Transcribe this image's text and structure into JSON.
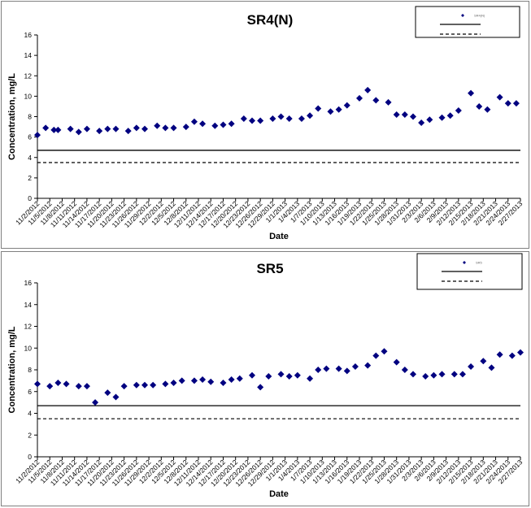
{
  "chart_data": [
    {
      "type": "scatter",
      "title": "SR4(N)",
      "xlabel": "Date",
      "ylabel": "Concentration, mg/L",
      "ylim": [
        0,
        16
      ],
      "yticks": [
        "0",
        "2",
        "4",
        "6",
        "8",
        "10",
        "12",
        "14",
        "16"
      ],
      "xticks": [
        "11/2/2012",
        "11/5/2012",
        "11/8/2012",
        "11/11/2012",
        "11/14/2012",
        "11/17/2012",
        "11/20/2012",
        "11/23/2012",
        "11/26/2012",
        "11/29/2012",
        "12/2/2012",
        "12/5/2012",
        "12/8/2012",
        "12/11/2012",
        "12/14/2012",
        "12/17/2012",
        "12/20/2012",
        "12/23/2012",
        "12/26/2012",
        "12/29/2012",
        "1/1/2013",
        "1/4/2013",
        "1/7/2013",
        "1/10/2013",
        "1/13/2013",
        "1/16/2013",
        "1/19/2013",
        "1/22/2013",
        "1/25/2013",
        "1/28/2013",
        "1/31/2013",
        "2/3/2013",
        "2/6/2013",
        "2/9/2013",
        "2/12/2013",
        "2/15/2013",
        "2/18/2013",
        "2/21/2013",
        "2/24/2013",
        "2/27/2013"
      ],
      "x_range": [
        "2012-11-02",
        "2013-02-27"
      ],
      "grid": false,
      "legend_position": "top-right",
      "legend": [
        "SR4(N)",
        "",
        ""
      ],
      "marker_color": "#000080",
      "line_color": "#000000",
      "series": [
        {
          "x": [
            "2012-11-02",
            "2012-11-04",
            "2012-11-06",
            "2012-11-07",
            "2012-11-10",
            "2012-11-12",
            "2012-11-14",
            "2012-11-17",
            "2012-11-19",
            "2012-11-21",
            "2012-11-24",
            "2012-11-26",
            "2012-11-28",
            "2012-12-01",
            "2012-12-03",
            "2012-12-05",
            "2012-12-08",
            "2012-12-10",
            "2012-12-12",
            "2012-12-15",
            "2012-12-17",
            "2012-12-19",
            "2012-12-22",
            "2012-12-24",
            "2012-12-26",
            "2012-12-29",
            "2012-12-31",
            "2013-01-02",
            "2013-01-05",
            "2013-01-07",
            "2013-01-09",
            "2013-01-12",
            "2013-01-14",
            "2013-01-16",
            "2013-01-19",
            "2013-01-21",
            "2013-01-23",
            "2013-01-26",
            "2013-01-28",
            "2013-01-30",
            "2013-02-01",
            "2013-02-03",
            "2013-02-05",
            "2013-02-08",
            "2013-02-10",
            "2013-02-12",
            "2013-02-15",
            "2013-02-17",
            "2013-02-19",
            "2013-02-22",
            "2013-02-24",
            "2013-02-26"
          ],
          "y": [
            6.2,
            6.9,
            6.7,
            6.7,
            6.8,
            6.5,
            6.8,
            6.6,
            6.8,
            6.8,
            6.6,
            6.9,
            6.8,
            7.1,
            6.9,
            6.9,
            7.0,
            7.5,
            7.3,
            7.1,
            7.2,
            7.3,
            7.8,
            7.6,
            7.6,
            7.8,
            8.0,
            7.8,
            7.8,
            8.1,
            8.8,
            8.5,
            8.7,
            9.1,
            9.8,
            10.6,
            9.6,
            9.4,
            8.2,
            8.2,
            8.0,
            7.4,
            7.7,
            7.9,
            8.1,
            8.6,
            10.3,
            9.0,
            8.7,
            9.9,
            9.3,
            9.3
          ]
        },
        {
          "y_constant": 4.7
        },
        {
          "y_constant": 3.5
        }
      ]
    },
    {
      "type": "scatter",
      "title": "SR5",
      "xlabel": "Date",
      "ylabel": "Concentration, mg/L",
      "ylim": [
        0,
        16
      ],
      "yticks": [
        "0",
        "2",
        "4",
        "6",
        "8",
        "10",
        "12",
        "14",
        "16"
      ],
      "xticks": [
        "11/2/2012",
        "11/5/2012",
        "11/8/2012",
        "11/11/2012",
        "11/14/2012",
        "11/17/2012",
        "11/20/2012",
        "11/23/2012",
        "11/26/2012",
        "11/29/2012",
        "12/2/2012",
        "12/5/2012",
        "12/8/2012",
        "12/11/2012",
        "12/14/2012",
        "12/17/2012",
        "12/20/2012",
        "12/23/2012",
        "12/26/2012",
        "12/29/2012",
        "1/1/2013",
        "1/4/2013",
        "1/7/2013",
        "1/10/2013",
        "1/13/2013",
        "1/16/2013",
        "1/19/2013",
        "1/22/2013",
        "1/25/2013",
        "1/28/2013",
        "1/31/2013",
        "2/3/2013",
        "2/6/2013",
        "2/9/2013",
        "2/12/2013",
        "2/15/2013",
        "2/18/2013",
        "2/21/2013",
        "2/24/2013",
        "2/27/2013"
      ],
      "x_range": [
        "2012-11-02",
        "2013-02-27"
      ],
      "grid": false,
      "legend_position": "top-right",
      "legend": [
        "SR5",
        "",
        ""
      ],
      "marker_color": "#000080",
      "line_color": "#000000",
      "series": [
        {
          "x": [
            "2012-11-02",
            "2012-11-05",
            "2012-11-07",
            "2012-11-09",
            "2012-11-12",
            "2012-11-14",
            "2012-11-16",
            "2012-11-19",
            "2012-11-21",
            "2012-11-23",
            "2012-11-26",
            "2012-11-28",
            "2012-11-30",
            "2012-12-03",
            "2012-12-05",
            "2012-12-07",
            "2012-12-10",
            "2012-12-12",
            "2012-12-14",
            "2012-12-17",
            "2012-12-19",
            "2012-12-21",
            "2012-12-24",
            "2012-12-26",
            "2012-12-28",
            "2012-12-31",
            "2013-01-02",
            "2013-01-04",
            "2013-01-07",
            "2013-01-09",
            "2013-01-11",
            "2013-01-14",
            "2013-01-16",
            "2013-01-18",
            "2013-01-21",
            "2013-01-23",
            "2013-01-25",
            "2013-01-28",
            "2013-01-30",
            "2013-02-01",
            "2013-02-04",
            "2013-02-06",
            "2013-02-08",
            "2013-02-11",
            "2013-02-13",
            "2013-02-15",
            "2013-02-18",
            "2013-02-20",
            "2013-02-22",
            "2013-02-25",
            "2013-02-27"
          ],
          "y": [
            6.7,
            6.5,
            6.8,
            6.7,
            6.5,
            6.5,
            5.0,
            5.9,
            5.5,
            6.5,
            6.6,
            6.6,
            6.6,
            6.7,
            6.8,
            7.0,
            7.0,
            7.1,
            6.9,
            6.8,
            7.1,
            7.2,
            7.5,
            6.4,
            7.4,
            7.6,
            7.4,
            7.5,
            7.2,
            8.0,
            8.1,
            8.1,
            7.9,
            8.3,
            8.4,
            9.3,
            9.7,
            8.7,
            8.0,
            7.6,
            7.4,
            7.5,
            7.6,
            7.6,
            7.6,
            8.3,
            8.8,
            8.2,
            9.4,
            9.3,
            9.6
          ]
        },
        {
          "y_constant": 4.7
        },
        {
          "y_constant": 3.5
        }
      ]
    }
  ]
}
